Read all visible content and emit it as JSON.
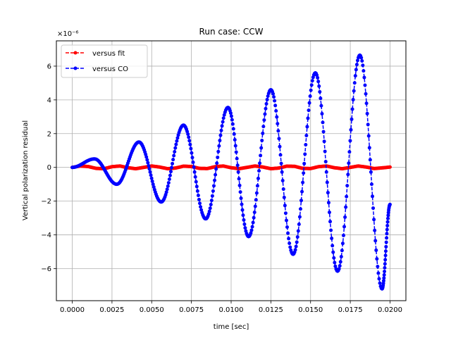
{
  "chart_data": {
    "type": "line",
    "title": "Run case: CCW",
    "xlabel": "time [sec]",
    "ylabel": "Vertical polarization residual",
    "y_offset_label": "×10⁻⁶",
    "xlim": [
      -0.001,
      0.021
    ],
    "ylim": [
      -7.9,
      7.5
    ],
    "grid": true,
    "legend_position": "upper-left",
    "x_ticks": [
      0.0,
      0.0025,
      0.005,
      0.0075,
      0.01,
      0.0125,
      0.015,
      0.0175,
      0.02
    ],
    "x_tick_labels": [
      "0.0000",
      "0.0025",
      "0.0050",
      "0.0075",
      "0.0100",
      "0.0125",
      "0.0150",
      "0.0175",
      "0.0200"
    ],
    "y_ticks": [
      -6,
      -4,
      -2,
      0,
      2,
      4,
      6
    ],
    "y_tick_labels": [
      "−6",
      "−4",
      "−2",
      "0",
      "2",
      "4",
      "6"
    ],
    "series": [
      {
        "name": "versus fit",
        "color": "#ff0000",
        "style": "dashed line with circle markers",
        "x": [
          0.0,
          0.0005,
          0.001,
          0.0015,
          0.002,
          0.0025,
          0.003,
          0.0035,
          0.004,
          0.0045,
          0.005,
          0.0055,
          0.006,
          0.0065,
          0.007,
          0.0075,
          0.008,
          0.0085,
          0.009,
          0.0095,
          0.01,
          0.0105,
          0.011,
          0.0115,
          0.012,
          0.0125,
          0.013,
          0.0135,
          0.014,
          0.0145,
          0.015,
          0.0155,
          0.016,
          0.0165,
          0.017,
          0.0175,
          0.018,
          0.0185,
          0.019,
          0.0195,
          0.02
        ],
        "y": [
          0.0,
          0.08,
          0.05,
          -0.06,
          -0.08,
          0.04,
          0.08,
          -0.02,
          -0.08,
          0.0,
          0.08,
          0.02,
          -0.08,
          -0.04,
          0.07,
          0.05,
          -0.06,
          -0.07,
          0.04,
          0.08,
          -0.02,
          -0.08,
          0.0,
          0.08,
          0.02,
          -0.08,
          -0.04,
          0.07,
          0.06,
          -0.06,
          -0.07,
          0.04,
          0.08,
          -0.02,
          -0.08,
          0.0,
          0.08,
          0.02,
          -0.07,
          -0.03,
          0.02
        ]
      },
      {
        "name": "versus CO",
        "color": "#0000ff",
        "style": "dashed line with circle markers",
        "amplitude_envelope": {
          "peaks_x": [
            0.0014,
            0.0042,
            0.007,
            0.0098,
            0.0125,
            0.0153,
            0.0181
          ],
          "peaks_y": [
            0.5,
            1.5,
            2.5,
            3.55,
            4.6,
            5.6,
            6.65
          ],
          "troughs_x": [
            0.0028,
            0.0056,
            0.0084,
            0.0111,
            0.0139,
            0.0167,
            0.0195
          ],
          "troughs_y": [
            -1.0,
            -2.05,
            -3.05,
            -4.1,
            -5.15,
            -6.15,
            -7.2
          ]
        },
        "period_sec": 0.00277,
        "x_end": 0.02,
        "y_end": -2.2
      }
    ]
  }
}
